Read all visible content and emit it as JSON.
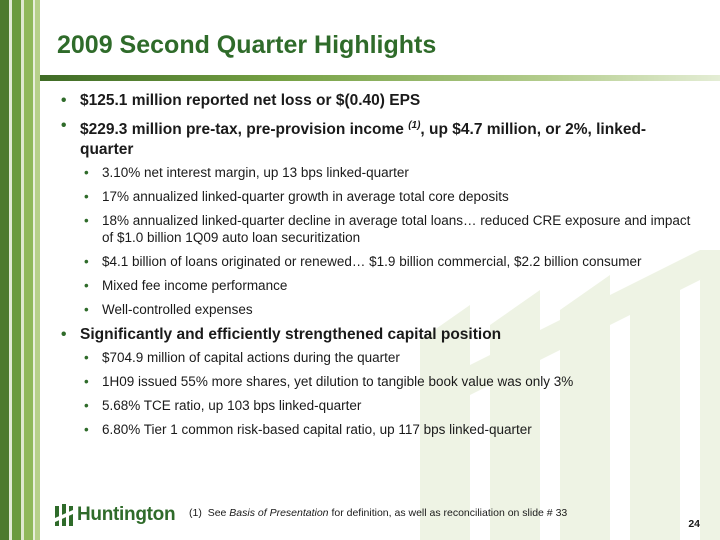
{
  "slide": {
    "title": "2009 Second Quarter Highlights",
    "page_number": "24"
  },
  "bullets": [
    {
      "text": "$125.1 million reported net loss or $(0.40) EPS"
    },
    {
      "text_before": "$229.3 million pre-tax, pre-provision income ",
      "sup": "(1)",
      "text_after": ", up $4.7 million, or 2%, linked-quarter",
      "children": [
        "3.10% net interest margin, up 13 bps linked-quarter",
        "17% annualized linked-quarter growth in average total core deposits",
        "18% annualized linked-quarter decline in average total loans… reduced CRE exposure and impact of $1.0 billion 1Q09 auto loan securitization",
        "$4.1 billion of loans originated or renewed… $1.9 billion commercial, $2.2 billion consumer",
        "Mixed fee income performance",
        "Well-controlled expenses"
      ]
    },
    {
      "text": "Significantly and efficiently strengthened capital position",
      "children": [
        "$704.9 million of capital actions during the quarter",
        "1H09 issued 55% more shares, yet dilution to tangible book value was only 3%",
        "5.68% TCE ratio, up 103 bps linked-quarter",
        "6.80% Tier 1 common risk-based capital ratio, up 117 bps linked-quarter"
      ]
    }
  ],
  "footer": {
    "logo_text": "Huntington",
    "footnote_marker": "(1)",
    "footnote_prefix": "See ",
    "footnote_italic": "Basis of Presentation",
    "footnote_suffix": " for definition, as well as reconciliation on slide # 33"
  },
  "colors": {
    "brand_green": "#2f6b2a",
    "stripe_dark": "#4e7a2e",
    "stripe_light": "#8fb85a"
  }
}
